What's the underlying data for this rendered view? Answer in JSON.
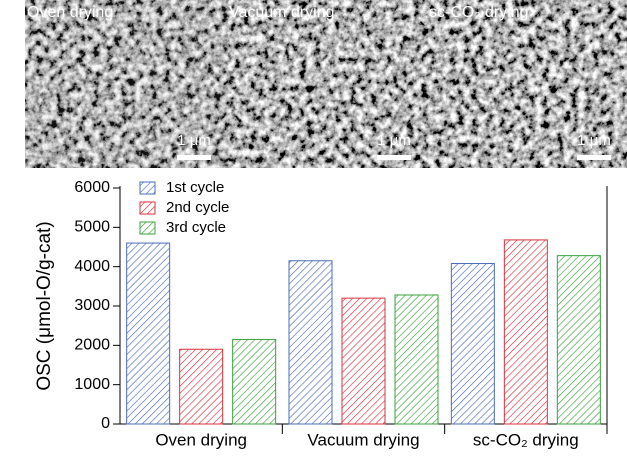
{
  "panels": [
    {
      "label": "Oven drying",
      "scale": "1 μm"
    },
    {
      "label": "Vacuum drying",
      "scale": "1 μm"
    },
    {
      "label": "sc-CO₂ drying",
      "scale": "1 μm"
    }
  ],
  "chart_data": {
    "type": "bar",
    "y_label": "OSC (μmol-O/g-cat)",
    "categories": [
      "Oven drying",
      "Vacuum drying",
      "sc-CO₂ drying"
    ],
    "series": [
      {
        "name": "1st cycle",
        "color": "#4a6cb8",
        "values": [
          4600,
          4150,
          4080
        ]
      },
      {
        "name": "2nd cycle",
        "color": "#d8323c",
        "values": [
          1900,
          3200,
          4680
        ]
      },
      {
        "name": "3rd cycle",
        "color": "#3aa03a",
        "values": [
          2150,
          3280,
          4280
        ]
      }
    ],
    "ylim": [
      0,
      6000
    ],
    "yticks": [
      0,
      1000,
      2000,
      3000,
      4000,
      5000,
      6000
    ],
    "legend": "upper left",
    "hatch": true
  }
}
